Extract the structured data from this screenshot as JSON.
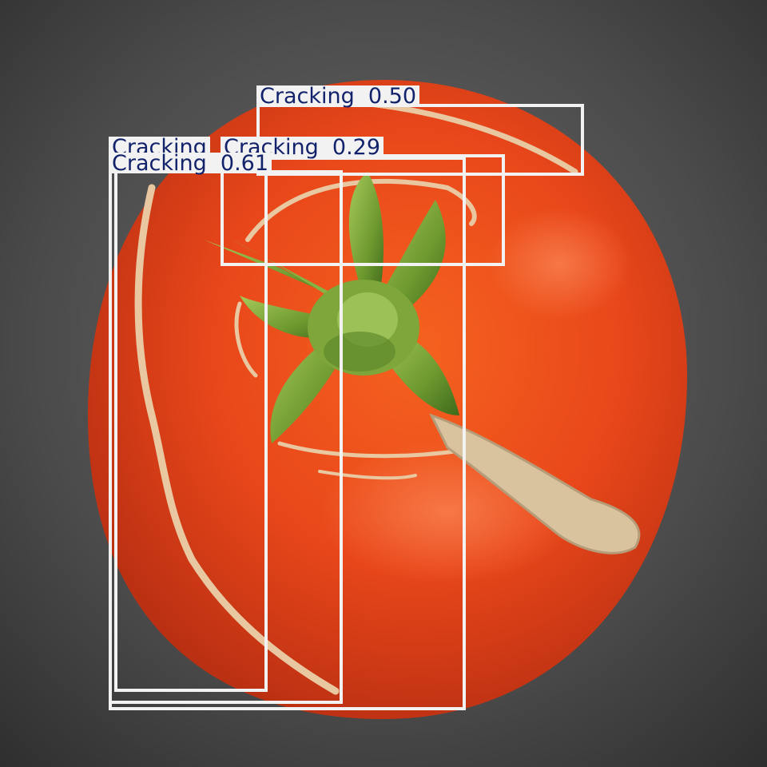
{
  "image": {
    "subject": "tomato with cracked skin and green calyx",
    "colors": {
      "background": "#4a4a4a",
      "tomato_skin": "#e8441a",
      "calyx_green": "#7fa83a",
      "crack": "#e9c7a1",
      "box_stroke": "#f2f2f2",
      "label_text": "#12236b"
    }
  },
  "detections": [
    {
      "class_name": "Cracking",
      "confidence": "0.50"
    },
    {
      "class_name": "Cracking",
      "confidence": "0.29"
    },
    {
      "class_name": "Cracking",
      "confidence": ""
    },
    {
      "class_name": "Cracking",
      "confidence": "0.61"
    },
    {
      "class_name": "Cracking",
      "confidence": ""
    }
  ]
}
